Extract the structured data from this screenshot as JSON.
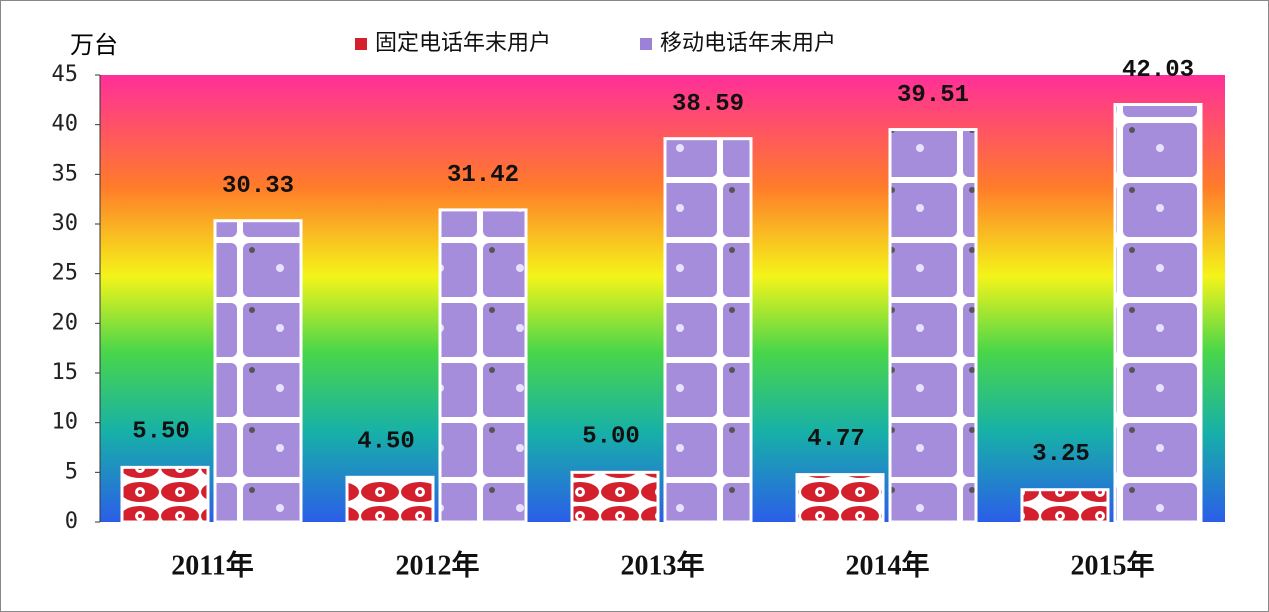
{
  "chart_data": {
    "type": "bar",
    "y_label": "万台",
    "categories": [
      "2011年",
      "2012年",
      "2013年",
      "2014年",
      "2015年"
    ],
    "series": [
      {
        "name": "固定电话年末用户",
        "color": "#d4202c",
        "values": [
          5.5,
          4.5,
          5.0,
          4.77,
          3.25
        ],
        "value_labels": [
          "5.50",
          "4.50",
          "5.00",
          "4.77",
          "3.25"
        ]
      },
      {
        "name": "移动电话年末用户",
        "color": "#9c82d6",
        "values": [
          30.33,
          31.42,
          38.59,
          39.51,
          42.03
        ],
        "value_labels": [
          "30.33",
          "31.42",
          "38.59",
          "39.51",
          "42.03"
        ]
      }
    ],
    "ylim": [
      0,
      45
    ],
    "yticks": [
      0,
      5,
      10,
      15,
      20,
      25,
      30,
      35,
      40,
      45
    ]
  }
}
